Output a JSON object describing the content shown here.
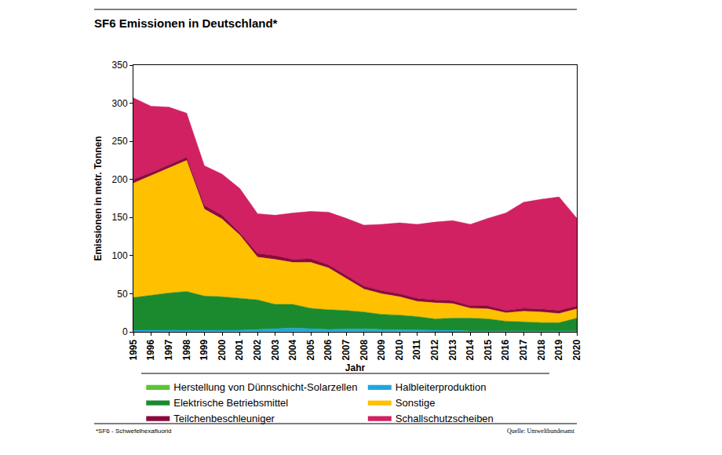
{
  "chart_data": {
    "type": "area",
    "stacked": true,
    "title": "SF6 Emissionen in Deutschland*",
    "x_label": "Jahr",
    "y_label": "Emissionen in metr. Tonnen",
    "annotations": [
      "*SF6 - Schwefelhexafluorid",
      "Quelle: Umweltbundesamt"
    ],
    "x": [
      1995,
      1996,
      1997,
      1998,
      1999,
      2000,
      2001,
      2002,
      2003,
      2004,
      2005,
      2006,
      2007,
      2008,
      2009,
      2010,
      2011,
      2012,
      2013,
      2014,
      2015,
      2016,
      2017,
      2018,
      2019,
      2020
    ],
    "xlim": [
      1995,
      2020
    ],
    "xticks": [
      1995,
      1996,
      1997,
      1998,
      1999,
      2000,
      2001,
      2002,
      2003,
      2004,
      2005,
      2006,
      2007,
      2008,
      2009,
      2010,
      2011,
      2012,
      2013,
      2014,
      2015,
      2016,
      2017,
      2018,
      2019,
      2020
    ],
    "ylim": [
      0,
      350
    ],
    "yticks": [
      0,
      50,
      100,
      150,
      200,
      250,
      300,
      350
    ],
    "grid": false,
    "legend": "bottom",
    "series": [
      {
        "name": "Herstellung von Dünnschicht-Solarzellen",
        "color": "#5cc43a",
        "values": [
          0,
          0,
          0,
          0,
          0,
          0,
          0,
          0,
          0,
          0,
          0,
          0,
          0.5,
          1,
          1,
          0.5,
          0.5,
          0,
          0,
          0,
          0,
          0,
          0,
          0,
          0,
          0
        ]
      },
      {
        "name": "Halbleiterproduktion",
        "color": "#1ea7e1",
        "values": [
          2,
          2,
          2,
          2,
          2,
          2,
          2,
          3,
          4,
          5,
          4,
          3,
          3,
          3,
          2,
          2,
          2,
          2,
          2,
          1,
          1,
          1,
          1,
          1,
          1,
          1
        ]
      },
      {
        "name": "Elektrische Betriebsmittel",
        "color": "#1b8a2e",
        "values": [
          43,
          46,
          49,
          51,
          45,
          44,
          42,
          39,
          32,
          31,
          27,
          26,
          24.5,
          22,
          20,
          19.5,
          17.5,
          15,
          16,
          17,
          16,
          13,
          12,
          11,
          11,
          17
        ]
      },
      {
        "name": "Sonstige",
        "color": "#ffc000",
        "values": [
          150,
          157,
          164,
          172,
          114,
          102,
          83,
          56,
          59,
          55,
          60,
          55,
          42,
          30,
          27,
          24,
          20,
          21,
          19,
          13,
          13,
          11,
          14,
          14,
          12,
          12
        ]
      },
      {
        "name": "Teilchenbeschleuniger",
        "color": "#8b0a3c",
        "values": [
          5,
          4,
          4,
          4,
          5,
          5,
          3,
          5,
          5,
          4,
          5,
          4,
          4,
          4,
          4,
          4,
          4,
          4,
          4,
          3,
          4,
          3,
          4,
          4,
          4,
          4
        ]
      },
      {
        "name": "Schallschutzscheiben",
        "color": "#d12163",
        "values": [
          107,
          87,
          76,
          58,
          52,
          54,
          58,
          52,
          53,
          61,
          62,
          69,
          75,
          80,
          87,
          93,
          97,
          102,
          105,
          107,
          115,
          128,
          139,
          144,
          149,
          115
        ]
      }
    ]
  }
}
